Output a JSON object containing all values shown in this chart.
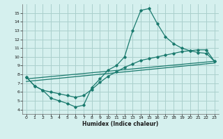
{
  "xlabel": "Humidex (Indice chaleur)",
  "ylabel": "",
  "xlim": [
    -0.5,
    23.5
  ],
  "ylim": [
    3.5,
    16.0
  ],
  "xticks": [
    0,
    1,
    2,
    3,
    4,
    5,
    6,
    7,
    8,
    9,
    10,
    11,
    12,
    13,
    14,
    15,
    16,
    17,
    18,
    19,
    20,
    21,
    22,
    23
  ],
  "yticks": [
    4,
    5,
    6,
    7,
    8,
    9,
    10,
    11,
    12,
    13,
    14,
    15
  ],
  "bg_color": "#d5f0ee",
  "grid_color": "#aacfcc",
  "line_color": "#1a7a6e",
  "line1_x": [
    0,
    1,
    2,
    3,
    4,
    5,
    6,
    7,
    8,
    9,
    10,
    11,
    12,
    13,
    14,
    15,
    16,
    17,
    18,
    19,
    20,
    21,
    22,
    23
  ],
  "line1_y": [
    7.7,
    6.7,
    6.2,
    5.3,
    5.0,
    4.7,
    4.3,
    4.5,
    6.5,
    7.5,
    8.5,
    9.0,
    10.0,
    13.0,
    15.3,
    15.5,
    13.8,
    12.3,
    11.5,
    11.0,
    10.7,
    10.5,
    10.4,
    9.5
  ],
  "line2_x": [
    0,
    1,
    2,
    3,
    4,
    5,
    6,
    7,
    8,
    9,
    10,
    11,
    12,
    13,
    14,
    15,
    16,
    17,
    18,
    19,
    20,
    21,
    22,
    23
  ],
  "line2_y": [
    7.7,
    6.7,
    6.2,
    6.0,
    5.8,
    5.6,
    5.4,
    5.6,
    6.3,
    7.1,
    7.8,
    8.3,
    8.8,
    9.2,
    9.6,
    9.8,
    10.0,
    10.2,
    10.4,
    10.6,
    10.7,
    10.8,
    10.8,
    9.5
  ],
  "line3_x": [
    0,
    23
  ],
  "line3_y": [
    7.5,
    9.5
  ],
  "line4_x": [
    0,
    23
  ],
  "line4_y": [
    7.2,
    9.3
  ]
}
